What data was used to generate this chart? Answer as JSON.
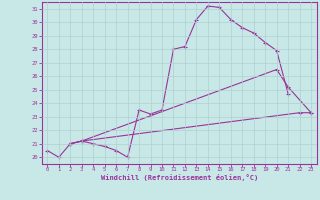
{
  "xlabel": "Windchill (Refroidissement éolien,°C)",
  "xlim": [
    -0.5,
    23.5
  ],
  "ylim": [
    19.5,
    31.5
  ],
  "yticks": [
    20,
    21,
    22,
    23,
    24,
    25,
    26,
    27,
    28,
    29,
    30,
    31
  ],
  "xticks": [
    0,
    1,
    2,
    3,
    4,
    5,
    6,
    7,
    8,
    9,
    10,
    11,
    12,
    13,
    14,
    15,
    16,
    17,
    18,
    19,
    20,
    21,
    22,
    23
  ],
  "bg_color": "#c8e8e8",
  "line_color": "#993399",
  "grid_color": "#b0d0d0",
  "line1_x": [
    0,
    1,
    2,
    3,
    4,
    5,
    6,
    7,
    8,
    9,
    10,
    11,
    12,
    13,
    14,
    15,
    16,
    17,
    18,
    19,
    20,
    21
  ],
  "line1_y": [
    20.5,
    20.0,
    21.0,
    21.2,
    21.0,
    20.8,
    20.5,
    20.0,
    23.5,
    23.2,
    23.5,
    28.0,
    28.2,
    30.2,
    31.2,
    31.1,
    30.2,
    29.6,
    29.2,
    28.5,
    27.9,
    24.7
  ],
  "line2_x": [
    2,
    3,
    20,
    21,
    23
  ],
  "line2_y": [
    21.0,
    21.2,
    26.5,
    25.2,
    23.3
  ],
  "line3_x": [
    2,
    3,
    22,
    23
  ],
  "line3_y": [
    21.0,
    21.2,
    23.3,
    23.3
  ]
}
